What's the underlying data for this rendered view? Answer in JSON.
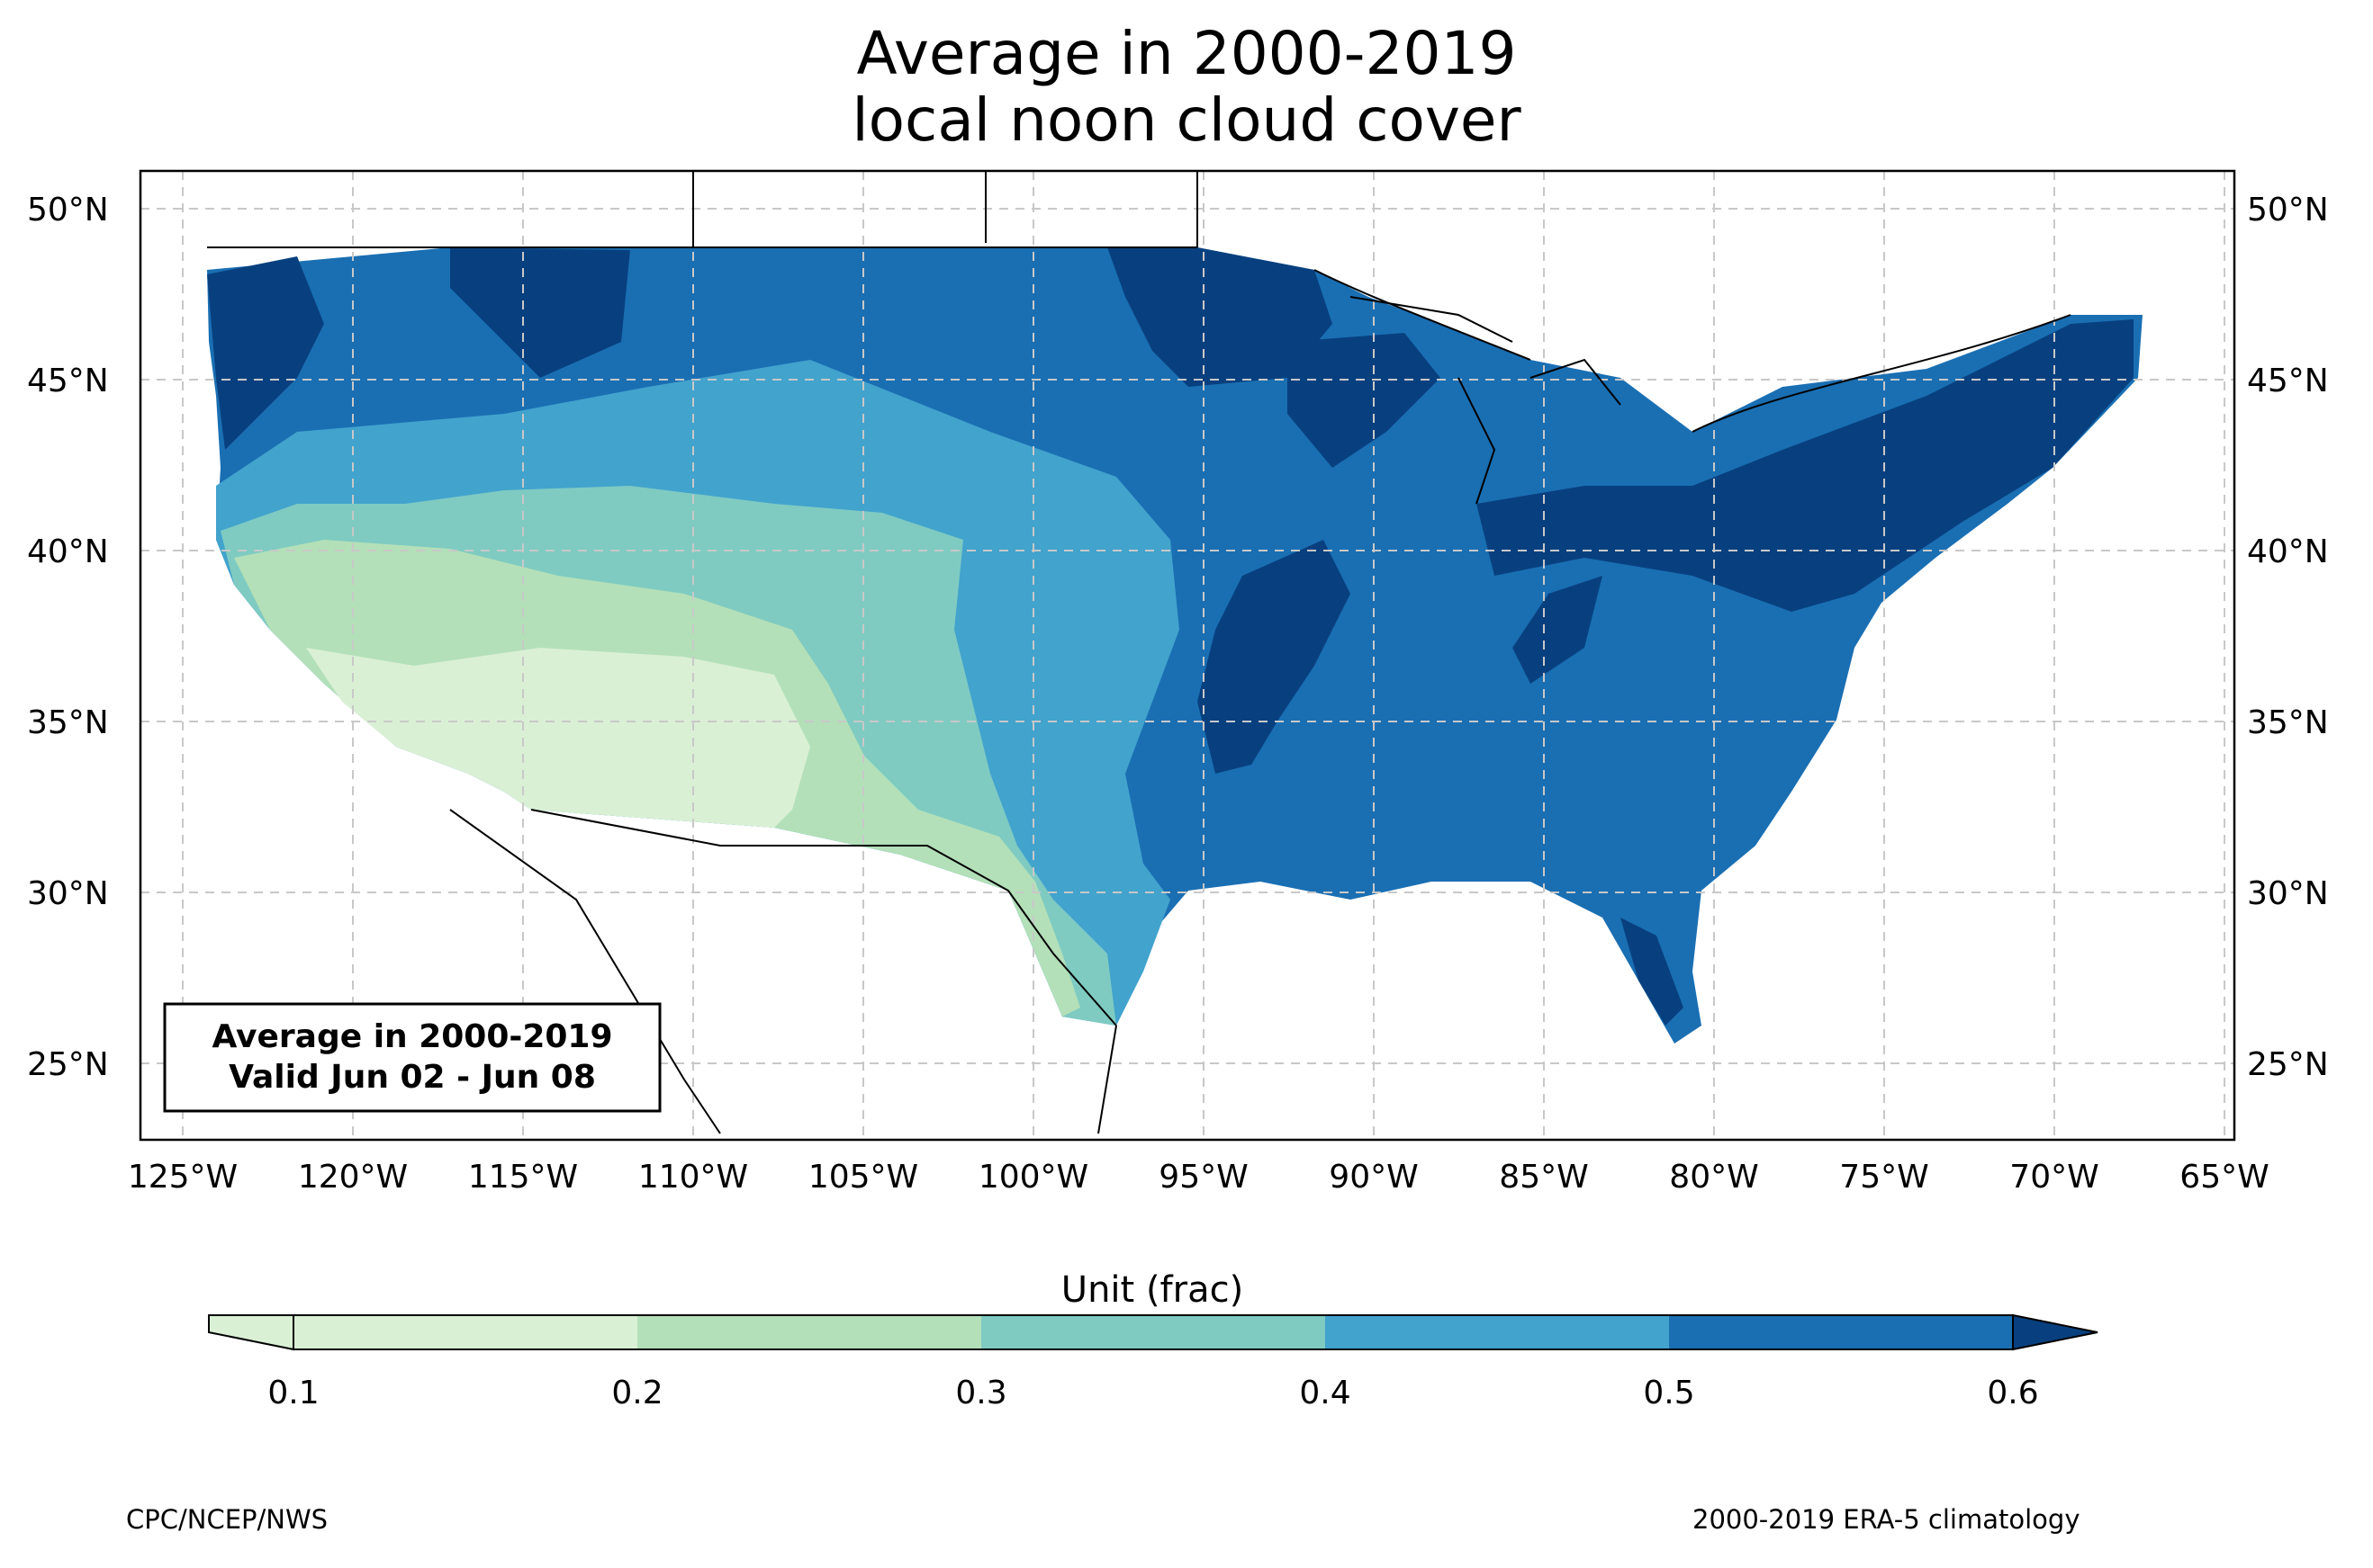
{
  "title_line1": "Average in 2000-2019",
  "title_line2": "local noon cloud cover",
  "info_box": {
    "line1": "Average in 2000-2019",
    "line2": "Valid Jun 02 - Jun 08"
  },
  "lat_labels": [
    "50°N",
    "45°N",
    "40°N",
    "35°N",
    "30°N",
    "25°N"
  ],
  "lon_labels": [
    "125°W",
    "120°W",
    "115°W",
    "110°W",
    "105°W",
    "100°W",
    "95°W",
    "90°W",
    "85°W",
    "80°W",
    "75°W",
    "70°W",
    "65°W"
  ],
  "colorbar": {
    "label": "Unit (frac)",
    "ticks": [
      "0.1",
      "0.2",
      "0.3",
      "0.4",
      "0.5",
      "0.6"
    ],
    "colors": [
      "#daf0d5",
      "#b3e0b8",
      "#7fcbc2",
      "#42a3cd",
      "#1a6fb3",
      "#08407f"
    ]
  },
  "credit_left": "CPC/NCEP/NWS",
  "credit_right": "2000-2019 ERA-5 climatology"
}
